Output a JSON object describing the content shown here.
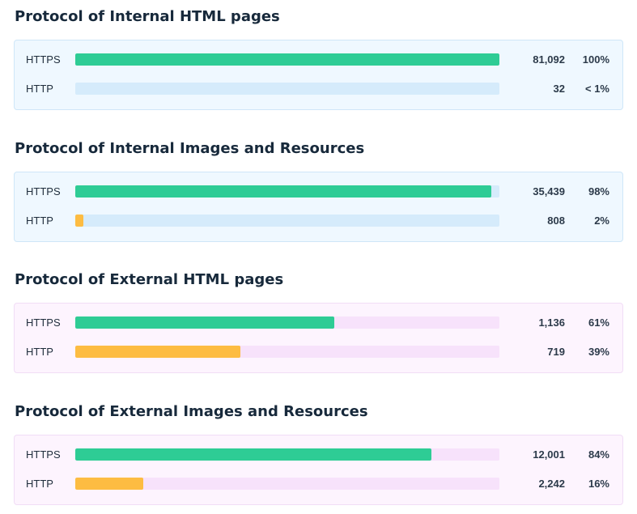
{
  "colors": {
    "https": "#2ecc95",
    "http": "#fdbc42",
    "internal_panel": "#eff8ff",
    "external_panel": "#fdf4fe"
  },
  "chart_data": [
    {
      "type": "bar",
      "title": "Protocol of Internal HTML pages",
      "panel": "internal",
      "categories": [
        "HTTPS",
        "HTTP"
      ],
      "values": [
        81092,
        32
      ],
      "value_labels": [
        "81,092",
        "32"
      ],
      "percent_labels": [
        "100%",
        "< 1%"
      ],
      "share": [
        1.0,
        0.0
      ]
    },
    {
      "type": "bar",
      "title": "Protocol of Internal Images and Resources",
      "panel": "internal",
      "categories": [
        "HTTPS",
        "HTTP"
      ],
      "values": [
        35439,
        808
      ],
      "value_labels": [
        "35,439",
        "808"
      ],
      "percent_labels": [
        "98%",
        "2%"
      ],
      "share": [
        0.98,
        0.02
      ]
    },
    {
      "type": "bar",
      "title": "Protocol of External HTML pages",
      "panel": "external",
      "categories": [
        "HTTPS",
        "HTTP"
      ],
      "values": [
        1136,
        719
      ],
      "value_labels": [
        "1,136",
        "719"
      ],
      "percent_labels": [
        "61%",
        "39%"
      ],
      "share": [
        0.61,
        0.39
      ]
    },
    {
      "type": "bar",
      "title": "Protocol of External Images and Resources",
      "panel": "external",
      "categories": [
        "HTTPS",
        "HTTP"
      ],
      "values": [
        12001,
        2242
      ],
      "value_labels": [
        "12,001",
        "2,242"
      ],
      "percent_labels": [
        "84%",
        "16%"
      ],
      "share": [
        0.84,
        0.16
      ]
    }
  ]
}
